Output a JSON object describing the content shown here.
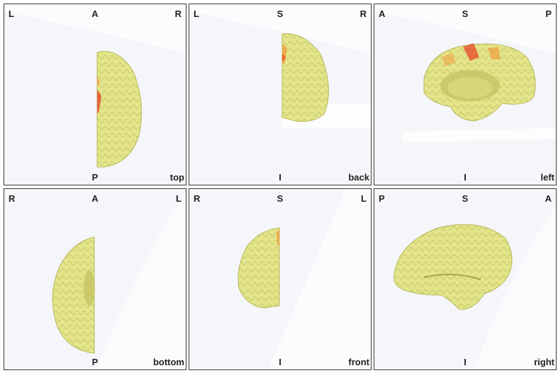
{
  "panels": [
    {
      "id": "top",
      "tl": "L",
      "tc": "A",
      "tr": "R",
      "bc": "P",
      "view": "top"
    },
    {
      "id": "back",
      "tl": "L",
      "tc": "S",
      "tr": "R",
      "bc": "I",
      "view": "back"
    },
    {
      "id": "left",
      "tl": "A",
      "tc": "S",
      "tr": "P",
      "bc": "I",
      "view": "left"
    },
    {
      "id": "bottom",
      "tl": "R",
      "tc": "A",
      "tr": "L",
      "bc": "P",
      "view": "bottom"
    },
    {
      "id": "front",
      "tl": "R",
      "tc": "S",
      "tr": "L",
      "bc": "I",
      "view": "front"
    },
    {
      "id": "right",
      "tl": "P",
      "tc": "S",
      "tr": "A",
      "bc": "I",
      "view": "right"
    }
  ],
  "colors": {
    "cortex": "#e4e58a",
    "cortex_shadow": "#b7b85a",
    "activation_hot": "#e8462a",
    "activation_warm": "#f0a040",
    "background": "#f5f6fa"
  }
}
